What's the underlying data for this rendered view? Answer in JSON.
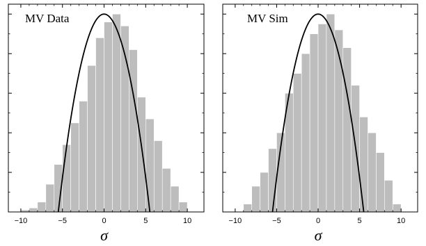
{
  "chart_data": [
    {
      "type": "bar",
      "title": "MV Data",
      "xlabel": "σ",
      "ylabel": "",
      "xlim": [
        -11.5,
        12
      ],
      "ylim": [
        0,
        1.05
      ],
      "xticks": [
        "-10",
        "-5",
        "0",
        "5",
        "10"
      ],
      "bin_edges": [
        -10,
        -9,
        -8,
        -7,
        -6,
        -5,
        -4,
        -3,
        -2,
        -1,
        0,
        1,
        2,
        3,
        4,
        5,
        6,
        7,
        8,
        9,
        10
      ],
      "values": [
        0.01,
        0.02,
        0.05,
        0.14,
        0.24,
        0.34,
        0.45,
        0.56,
        0.74,
        0.88,
        0.96,
        1.0,
        0.94,
        0.82,
        0.58,
        0.47,
        0.36,
        0.22,
        0.13,
        0.05
      ],
      "curve": {
        "name": "Gaussian fit",
        "mean": 0,
        "peak": 1.0,
        "x_zero": [
          -5.5,
          5.5
        ]
      },
      "grid": false
    },
    {
      "type": "bar",
      "title": "MV Sim",
      "xlabel": "σ",
      "ylabel": "",
      "xlim": [
        -11.5,
        12
      ],
      "ylim": [
        0,
        1.05
      ],
      "xticks": [
        "-10",
        "-5",
        "0",
        "5",
        "10"
      ],
      "bin_edges": [
        -9,
        -8,
        -7,
        -6,
        -5,
        -4,
        -3,
        -2,
        -1,
        0,
        1,
        2,
        3,
        4,
        5,
        6,
        7,
        8,
        9,
        10
      ],
      "values": [
        0.04,
        0.13,
        0.2,
        0.32,
        0.4,
        0.6,
        0.7,
        0.8,
        0.9,
        0.95,
        1.0,
        0.92,
        0.83,
        0.64,
        0.48,
        0.4,
        0.3,
        0.16,
        0.04
      ],
      "curve": {
        "name": "Gaussian fit",
        "mean": 0,
        "peak": 1.0,
        "x_zero": [
          -5.5,
          5.5
        ]
      },
      "grid": false
    }
  ]
}
